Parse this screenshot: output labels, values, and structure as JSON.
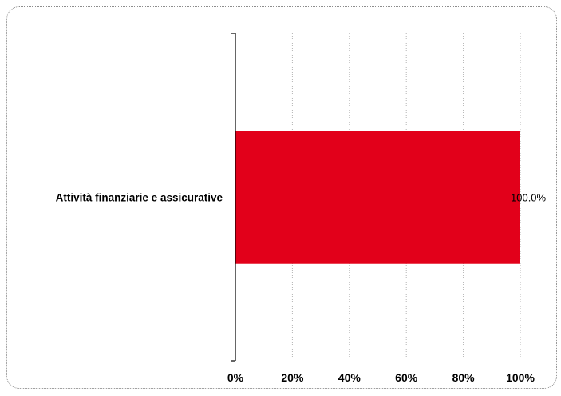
{
  "chart_data": {
    "type": "bar",
    "orientation": "horizontal",
    "categories": [
      "Attività finanziarie e assicurative"
    ],
    "values": [
      100.0
    ],
    "data_labels": [
      "100.0%"
    ],
    "xlim": [
      0,
      100
    ],
    "x_ticks": [
      0,
      20,
      40,
      60,
      80,
      100
    ],
    "x_tick_labels": [
      "0%",
      "20%",
      "40%",
      "60%",
      "80%",
      "100%"
    ],
    "grid": "vertical dotted",
    "legend": "none",
    "colors": {
      "bar": "#e2001a",
      "grid": "#b3b3b3",
      "axis": "#000000",
      "frame": "#8c8c8c"
    }
  }
}
